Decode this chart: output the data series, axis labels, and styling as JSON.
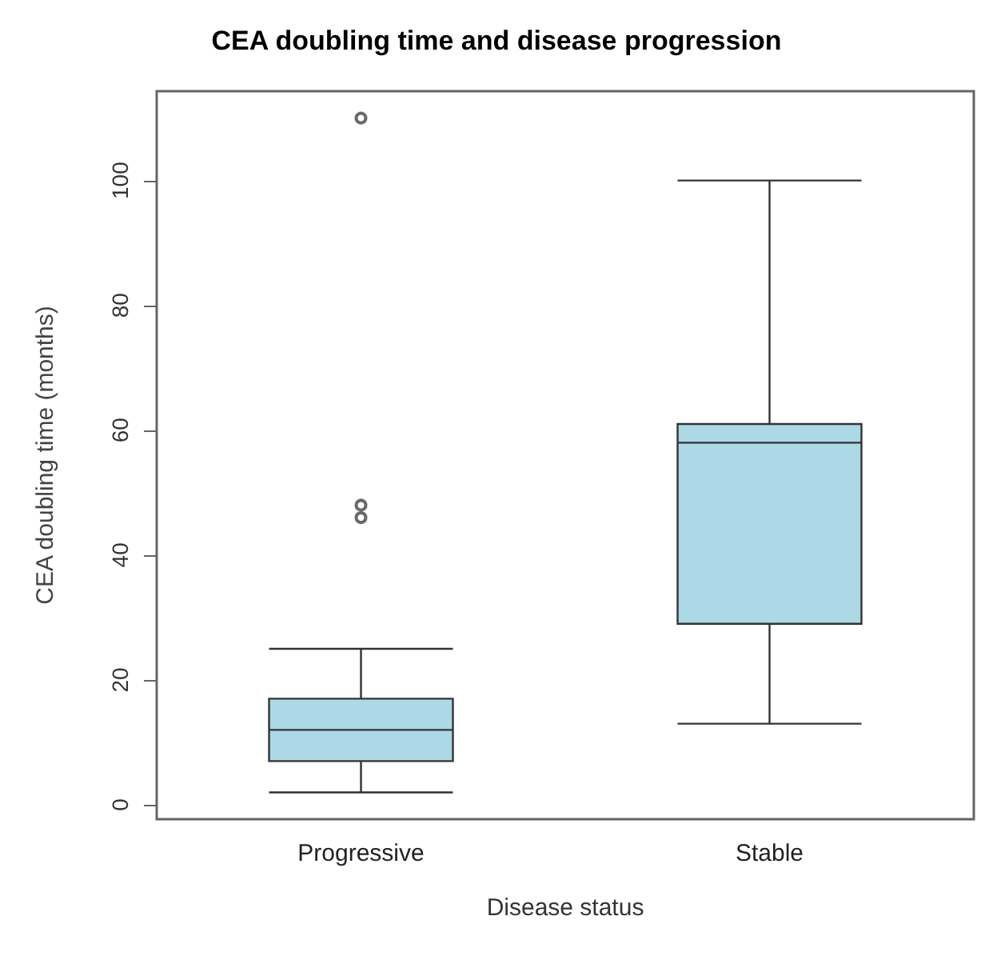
{
  "chart_data": {
    "type": "box",
    "title": "CEA doubling time and disease progression",
    "xlabel": "Disease status",
    "ylabel": "CEA doubling time (months)",
    "categories": [
      "Progressive",
      "Stable"
    ],
    "boxes": [
      {
        "low": 2,
        "q1": 7,
        "median": 12,
        "q3": 17,
        "high": 25,
        "outliers": [
          46,
          48,
          110
        ]
      },
      {
        "low": 13,
        "q1": 29,
        "median": 58,
        "q3": 61,
        "high": 100
      }
    ],
    "color": "#add8e6",
    "ylim": [
      -2.3,
      114.3
    ],
    "yticks": [
      0,
      20,
      40,
      60,
      80,
      100
    ],
    "grid": false
  }
}
